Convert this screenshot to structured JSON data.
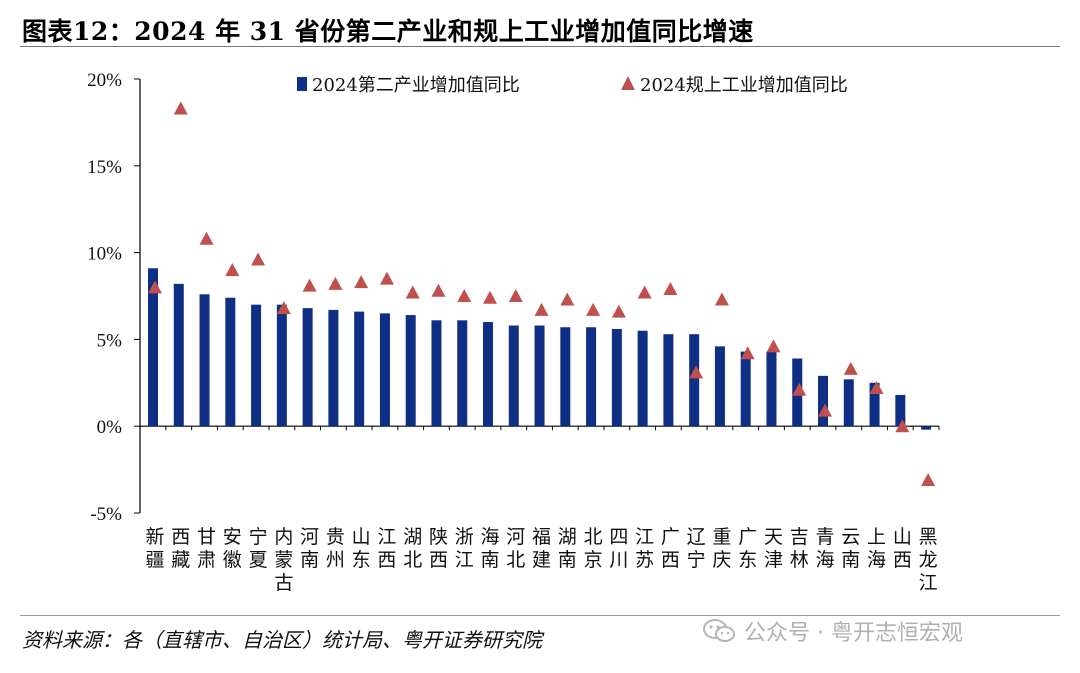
{
  "header": {
    "title": "图表12：2024 年 31 省份第二产业和规上工业增加值同比增速"
  },
  "footer": {
    "source": "资料来源：各（直辖市、自治区）统计局、粤开证券研究院",
    "watermark": "公众号 · 粤开志恒宏观"
  },
  "colors": {
    "bar": "#0f2f87",
    "marker": "#c0504d"
  },
  "chart_data": {
    "type": "bar",
    "title": "2024 年 31 省份第二产业和规上工业增加值同比增速",
    "categories": [
      "新疆",
      "西藏",
      "甘肃",
      "安徽",
      "宁夏",
      "内蒙古",
      "河南",
      "贵州",
      "山东",
      "江西",
      "湖北",
      "陕西",
      "浙江",
      "海南",
      "河北",
      "福建",
      "湖南",
      "北京",
      "四川",
      "江苏",
      "广西",
      "辽宁",
      "重庆",
      "广东",
      "天津",
      "吉林",
      "青海",
      "云南",
      "上海",
      "山西",
      "黑龙江"
    ],
    "y_ticks": [
      "20%",
      "15%",
      "10%",
      "5%",
      "0%",
      "-5%"
    ],
    "ylim": [
      -5,
      20
    ],
    "series": [
      {
        "name": "2024第二产业增加值同比",
        "type": "bar",
        "values": [
          9.1,
          8.2,
          7.6,
          7.4,
          7.0,
          7.0,
          6.8,
          6.7,
          6.6,
          6.5,
          6.4,
          6.1,
          6.1,
          6.0,
          5.8,
          5.8,
          5.7,
          5.7,
          5.6,
          5.5,
          5.3,
          5.3,
          4.6,
          4.3,
          4.3,
          3.9,
          2.9,
          2.7,
          2.5,
          1.8,
          -0.2
        ]
      },
      {
        "name": "2024规上工业增加值同比",
        "type": "scatter",
        "values": [
          8.0,
          18.3,
          10.8,
          9.0,
          9.6,
          6.8,
          8.1,
          8.2,
          8.3,
          8.5,
          7.7,
          7.8,
          7.5,
          7.4,
          7.5,
          6.7,
          7.3,
          6.7,
          6.6,
          7.7,
          7.9,
          3.1,
          7.3,
          4.2,
          4.6,
          2.1,
          0.9,
          3.3,
          2.2,
          0.0,
          -3.1
        ]
      }
    ],
    "legend_position": "top",
    "grid": false
  }
}
